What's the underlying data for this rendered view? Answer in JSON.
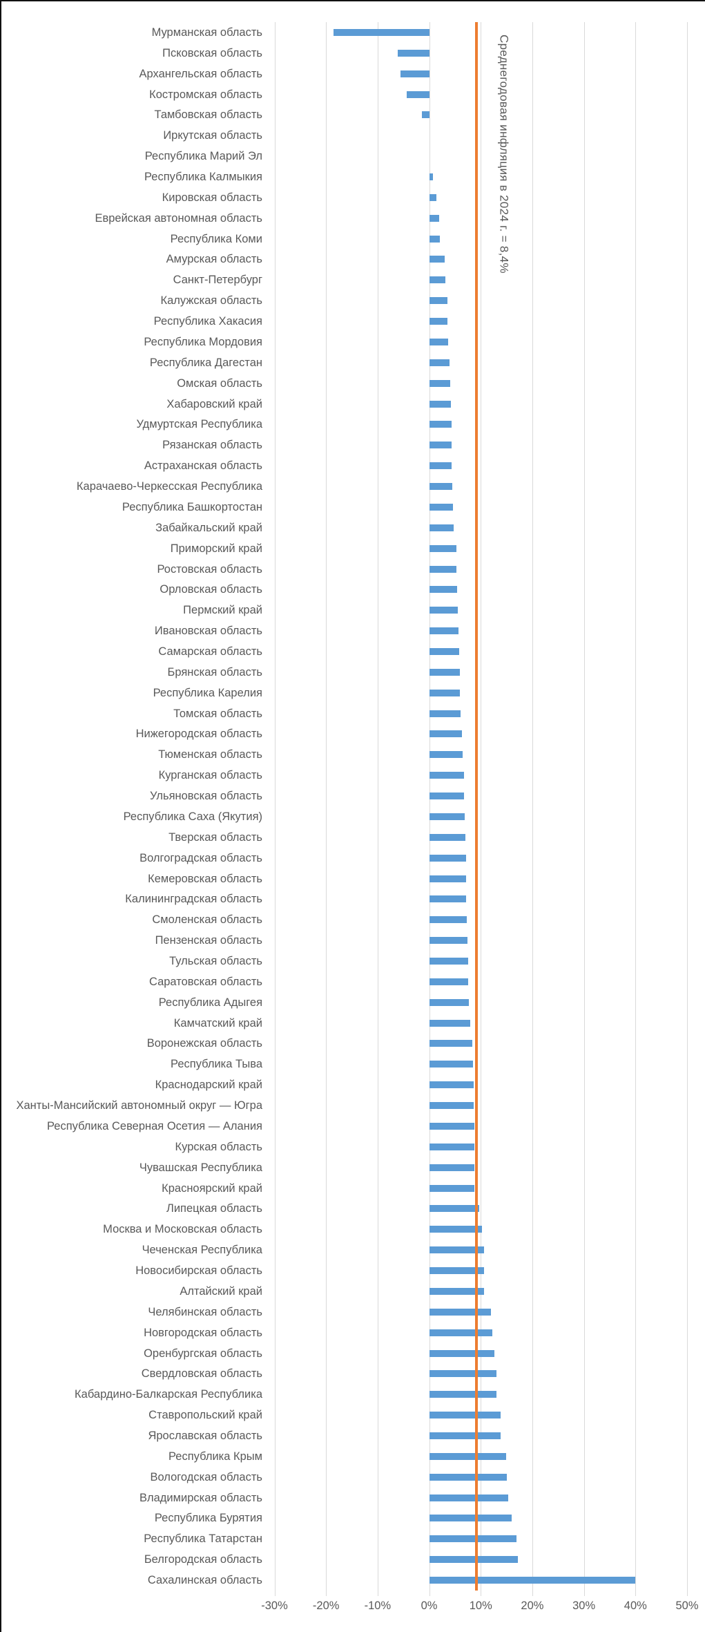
{
  "chart_data": {
    "type": "bar",
    "orientation": "horizontal",
    "title": "",
    "xlabel": "",
    "ylabel": "",
    "value_suffix": "%",
    "x_range": [
      -30,
      50
    ],
    "x_tick_step": 10,
    "x_tick_labels": [
      "-30%",
      "-20%",
      "-10%",
      "0%",
      "10%",
      "20%",
      "30%",
      "40%",
      "50%"
    ],
    "grid": "vertical-gridlines-every-10pct",
    "legend": "none",
    "bar_color": "#5b9bd5",
    "gridline_color": "#d9d9d9",
    "text_color": "#595959",
    "reference_line": {
      "label": "Среднегодовая инфляция в 2024 г. = 8,4%",
      "value": 8.4,
      "drawn_at": 9.1,
      "color": "#ed7d31"
    },
    "categories": [
      "Мурманская область",
      "Псковская область",
      "Архангельская область",
      "Костромская область",
      "Тамбовская область",
      "Иркутская область",
      "Республика Марий Эл",
      "Республика Калмыкия",
      "Кировская область",
      "Еврейская автономная область",
      "Республика Коми",
      "Амурская область",
      "Санкт-Петербург",
      "Калужская область",
      "Республика Хакасия",
      "Республика Мордовия",
      "Республика Дагестан",
      "Омская область",
      "Хабаровский край",
      "Удмуртская Республика",
      "Рязанская область",
      "Астраханская область",
      "Карачаево-Черкесская Республика",
      "Республика Башкортостан",
      "Забайкальский край",
      "Приморский край",
      "Ростовская область",
      "Орловская область",
      "Пермский край",
      "Ивановская область",
      "Самарская область",
      "Брянская область",
      "Республика Карелия",
      "Томская область",
      "Нижегородская область",
      "Тюменская область",
      "Курганская область",
      "Ульяновская область",
      "Республика Саха (Якутия)",
      "Тверская область",
      "Волгоградская область",
      "Кемеровская область",
      "Калининградская область",
      "Смоленская область",
      "Пензенская область",
      "Тульская область",
      "Саратовская область",
      "Республика Адыгея",
      "Камчатский край",
      "Воронежская область",
      "Республика Тыва",
      "Краснодарский край",
      "Ханты-Мансийский автономный округ — Югра",
      "Республика Северная Осетия — Алания",
      "Курская область",
      "Чувашская Республика",
      "Красноярский край",
      "Липецкая область",
      "Москва и Московская область",
      "Чеченская Республика",
      "Новосибирская область",
      "Алтайский край",
      "Челябинская область",
      "Новгородская область",
      "Оренбургская область",
      "Свердловская область",
      "Кабардино-Балкарская Республика",
      "Ставропольский край",
      "Ярославская область",
      "Республика Крым",
      "Вологодская область",
      "Владимирская область",
      "Республика Бурятия",
      "Республика Татарстан",
      "Белгородская область",
      "Сахалинская область"
    ],
    "values": [
      -18.6,
      -6.1,
      -5.5,
      -4.4,
      -1.4,
      0,
      0,
      0.7,
      1.4,
      1.9,
      2.0,
      3.0,
      3.2,
      3.5,
      3.6,
      3.7,
      4.0,
      4.1,
      4.2,
      4.3,
      4.4,
      4.4,
      4.5,
      4.6,
      4.8,
      5.3,
      5.3,
      5.4,
      5.6,
      5.7,
      5.8,
      5.9,
      5.9,
      6.1,
      6.3,
      6.5,
      6.7,
      6.8,
      6.9,
      7.0,
      7.1,
      7.1,
      7.2,
      7.3,
      7.4,
      7.5,
      7.6,
      7.7,
      7.9,
      8.3,
      8.5,
      8.6,
      8.6,
      8.7,
      8.7,
      8.7,
      8.8,
      9.7,
      10.2,
      10.6,
      10.6,
      10.7,
      12.0,
      12.2,
      12.6,
      13.1,
      13.1,
      13.8,
      13.9,
      14.9,
      15.0,
      15.3,
      16.0,
      16.9,
      17.2,
      40.0
    ]
  }
}
